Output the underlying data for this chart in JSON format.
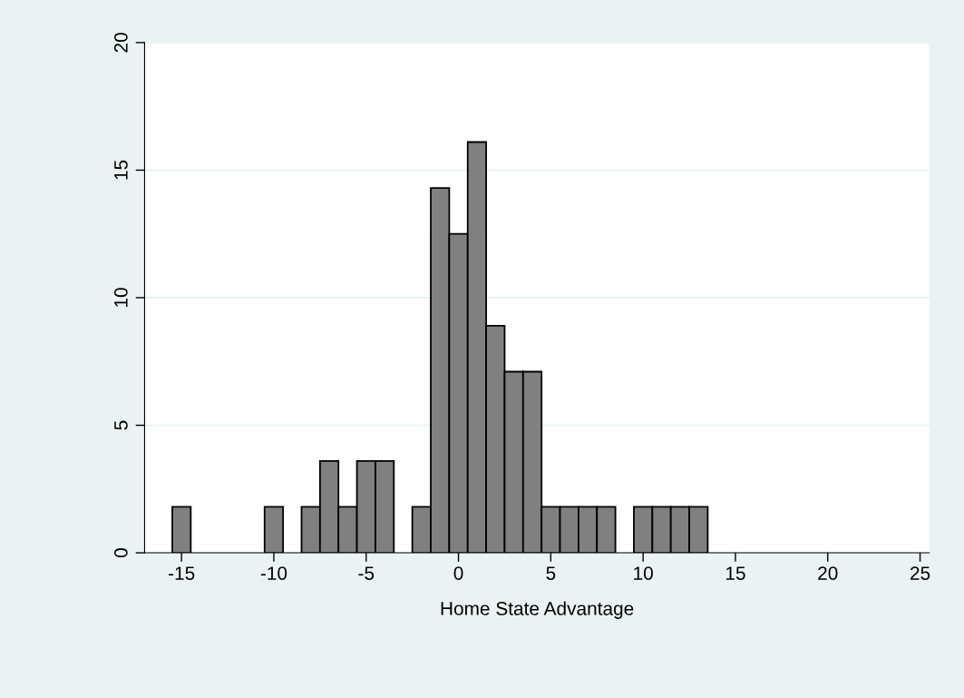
{
  "chart_data": {
    "type": "histogram",
    "xlabel": "Home State Advantage",
    "bins": [
      -15.5,
      -14.5,
      -13.5,
      -12.5,
      -11.5,
      -10.5,
      -9.5,
      -8.5,
      -7.5,
      -6.5,
      -5.5,
      -4.5,
      -3.5,
      -2.5,
      -1.5,
      -0.5,
      0.5,
      1.5,
      2.5,
      3.5,
      4.5,
      5.5,
      6.5,
      7.5,
      8.5,
      9.5,
      10.5,
      11.5,
      12.5,
      13.5,
      14.5,
      15.5,
      16.5,
      17.5,
      18.5,
      19.5,
      20.5,
      21.5,
      22.5,
      23.5,
      24.5,
      25.5
    ],
    "values": [
      1.8,
      0,
      0,
      0,
      0,
      1.8,
      0,
      1.8,
      3.6,
      1.8,
      3.6,
      3.6,
      0,
      1.8,
      14.3,
      12.5,
      16.1,
      8.9,
      7.1,
      7.1,
      1.8,
      1.8,
      1.8,
      1.8,
      0,
      1.8,
      1.8,
      1.8,
      1.8,
      0,
      0,
      0,
      0,
      0,
      0,
      0,
      0,
      0,
      0,
      0,
      0
    ],
    "color": "#808080",
    "xlim": [
      -17,
      25.5
    ],
    "xticks": [
      -15,
      -10,
      -5,
      0,
      5,
      10,
      15,
      20,
      25
    ],
    "ylim": [
      0,
      20
    ],
    "yticks": [
      0,
      5,
      10,
      15,
      20
    ],
    "grid": "y"
  }
}
